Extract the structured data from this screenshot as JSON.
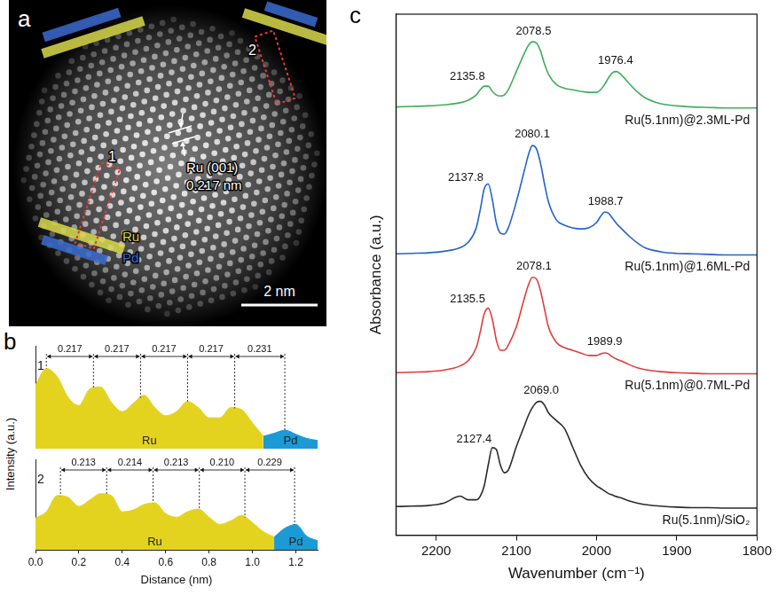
{
  "image_panel": {
    "panel": "a",
    "lattice_label": "Ru (001)",
    "lattice_spacing": "0.217 nm",
    "scale_bar": "2 nm",
    "regions": [
      "1",
      "2"
    ],
    "bands": [
      {
        "name": "Ru",
        "color": "#d9d94c"
      },
      {
        "name": "Pd",
        "color": "#3a6cd0"
      }
    ]
  },
  "chart_data": [
    {
      "type": "area",
      "panel": "b",
      "xlabel": "Distance (nm)",
      "ylabel": "Intensity (a.u.)",
      "tick_labels": "x",
      "grid": false,
      "x": [
        0,
        0.05,
        0.1,
        0.15,
        0.2,
        0.25,
        0.3,
        0.35,
        0.4,
        0.45,
        0.5,
        0.55,
        0.6,
        0.65,
        0.7,
        0.75,
        0.8,
        0.85,
        0.9,
        0.95,
        1,
        1.05,
        1.1,
        1.15,
        1.2,
        1.25,
        1.3
      ],
      "xlim": [
        0,
        1.3
      ],
      "xticks": [
        {
          "value": 0,
          "label": "0.0"
        },
        0.2,
        0.4,
        0.6,
        0.8,
        {
          "value": 1,
          "label": "1.0"
        },
        1.2
      ],
      "profiles": [
        {
          "name": "1",
          "ylim": [
            0,
            1
          ],
          "series": [
            {
              "name": "Ru",
              "color": "#e3d31f",
              "values": [
                0.62,
                0.78,
                0.7,
                0.5,
                0.42,
                0.58,
                0.6,
                0.45,
                0.36,
                0.44,
                0.52,
                0.4,
                0.32,
                0.36,
                0.46,
                0.4,
                0.3,
                0.3,
                0.4,
                0.38,
                0.25,
                0.12,
                null,
                null,
                null,
                null,
                null
              ]
            },
            {
              "name": "Pd",
              "color": "#1b9ad6",
              "values": [
                null,
                null,
                null,
                null,
                null,
                null,
                null,
                null,
                null,
                null,
                null,
                null,
                null,
                null,
                null,
                null,
                null,
                null,
                null,
                null,
                null,
                0.12,
                0.15,
                0.18,
                0.14,
                0.1,
                0.08
              ]
            }
          ],
          "peaks": [
            0.05,
            0.267,
            0.484,
            0.701,
            0.918,
            1.149
          ],
          "spacings": [
            0.217,
            0.217,
            0.217,
            0.217,
            0.231
          ]
        },
        {
          "name": "2",
          "ylim": [
            0,
            1
          ],
          "series": [
            {
              "name": "Ru",
              "color": "#e3d31f",
              "values": [
                0.35,
                0.42,
                0.6,
                0.58,
                0.48,
                0.55,
                0.62,
                0.6,
                0.42,
                0.44,
                0.5,
                0.52,
                0.4,
                0.36,
                0.42,
                0.45,
                0.36,
                0.28,
                0.32,
                0.38,
                0.3,
                0.2,
                0.14,
                null,
                null,
                null,
                null
              ]
            },
            {
              "name": "Pd",
              "color": "#1b9ad6",
              "values": [
                null,
                null,
                null,
                null,
                null,
                null,
                null,
                null,
                null,
                null,
                null,
                null,
                null,
                null,
                null,
                null,
                null,
                null,
                null,
                null,
                null,
                null,
                0.14,
                0.24,
                0.28,
                0.15,
                0.1
              ]
            }
          ],
          "peaks": [
            0.115,
            0.328,
            0.542,
            0.755,
            0.965,
            1.194
          ],
          "spacings": [
            0.213,
            0.214,
            0.213,
            {
              "value": 0.21,
              "label": "0.210"
            },
            0.229
          ]
        }
      ]
    },
    {
      "type": "line",
      "panel": "c",
      "xlabel": "Wavenumber (cm⁻¹)",
      "ylabel": "Absorbance (a.u.)",
      "tick_labels": "x",
      "grid": false,
      "x": [
        2250,
        2230,
        2210,
        2190,
        2170,
        2160,
        2150,
        2145,
        2140,
        2135,
        2130,
        2125,
        2120,
        2115,
        2110,
        2100,
        2090,
        2085,
        2080,
        2075,
        2070,
        2065,
        2060,
        2050,
        2040,
        2030,
        2020,
        2010,
        2000,
        1995,
        1990,
        1985,
        1980,
        1975,
        1970,
        1960,
        1950,
        1940,
        1920,
        1900,
        1880,
        1860,
        1840,
        1820,
        1800
      ],
      "xlim": [
        2250,
        1800
      ],
      "xticks": [
        2200,
        2100,
        2000,
        1900,
        1800
      ],
      "ylim": [
        0,
        10
      ],
      "series": [
        {
          "name": "Ru(5.1nm)@2.3ML-Pd",
          "color": "#3fae5a",
          "values": [
            8.22,
            8.23,
            8.24,
            8.26,
            8.3,
            8.35,
            8.45,
            8.55,
            8.62,
            8.62,
            8.52,
            8.45,
            8.43,
            8.45,
            8.55,
            8.9,
            9.25,
            9.4,
            9.47,
            9.45,
            9.3,
            9.05,
            8.85,
            8.65,
            8.58,
            8.55,
            8.52,
            8.5,
            8.5,
            8.55,
            8.65,
            8.78,
            8.88,
            8.9,
            8.85,
            8.68,
            8.52,
            8.4,
            8.28,
            8.24,
            8.22,
            8.21,
            8.2,
            8.2,
            8.2
          ],
          "peaks": [
            2135.8,
            2078.5,
            1976.4
          ]
        },
        {
          "name": "Ru(5.1nm)@1.6ML-Pd",
          "color": "#2563c9",
          "values": [
            5.4,
            5.41,
            5.42,
            5.45,
            5.52,
            5.62,
            5.9,
            6.25,
            6.65,
            6.74,
            6.45,
            6.0,
            5.8,
            5.78,
            5.9,
            6.4,
            7.0,
            7.3,
            7.48,
            7.42,
            7.15,
            6.75,
            6.4,
            6.05,
            5.95,
            5.9,
            5.88,
            5.9,
            6.0,
            6.12,
            6.2,
            6.18,
            6.08,
            5.98,
            5.9,
            5.75,
            5.62,
            5.52,
            5.44,
            5.41,
            5.4,
            5.39,
            5.38,
            5.38,
            5.38
          ],
          "peaks": [
            2137.8,
            2080.1,
            1988.7
          ]
        },
        {
          "name": "Ru(5.1nm)@0.7ML-Pd",
          "color": "#e03c3c",
          "values": [
            3.12,
            3.13,
            3.14,
            3.17,
            3.25,
            3.35,
            3.6,
            3.9,
            4.25,
            4.36,
            4.15,
            3.75,
            3.55,
            3.55,
            3.65,
            4.0,
            4.55,
            4.8,
            4.95,
            4.92,
            4.7,
            4.35,
            4.0,
            3.7,
            3.6,
            3.55,
            3.5,
            3.45,
            3.45,
            3.48,
            3.5,
            3.48,
            3.42,
            3.38,
            3.35,
            3.28,
            3.22,
            3.18,
            3.14,
            3.12,
            3.11,
            3.1,
            3.1,
            3.1,
            3.1
          ],
          "peaks": [
            2135.5,
            2078.1,
            1989.9
          ]
        },
        {
          "name": "Ru(5.1nm)/SiO₂",
          "color": "#2b2b2b",
          "values": [
            0.55,
            0.56,
            0.57,
            0.62,
            0.75,
            0.68,
            0.68,
            0.75,
            0.95,
            1.35,
            1.68,
            1.65,
            1.35,
            1.2,
            1.25,
            1.7,
            2.1,
            2.3,
            2.45,
            2.55,
            2.57,
            2.5,
            2.35,
            2.2,
            2.05,
            1.7,
            1.35,
            1.1,
            0.95,
            0.9,
            0.85,
            0.8,
            0.77,
            0.74,
            0.72,
            0.66,
            0.62,
            0.59,
            0.56,
            0.54,
            0.53,
            0.53,
            0.52,
            0.52,
            0.52
          ],
          "peaks": [
            2127.4,
            {
              "value": 2069,
              "label": "2069.0"
            }
          ]
        }
      ]
    }
  ]
}
